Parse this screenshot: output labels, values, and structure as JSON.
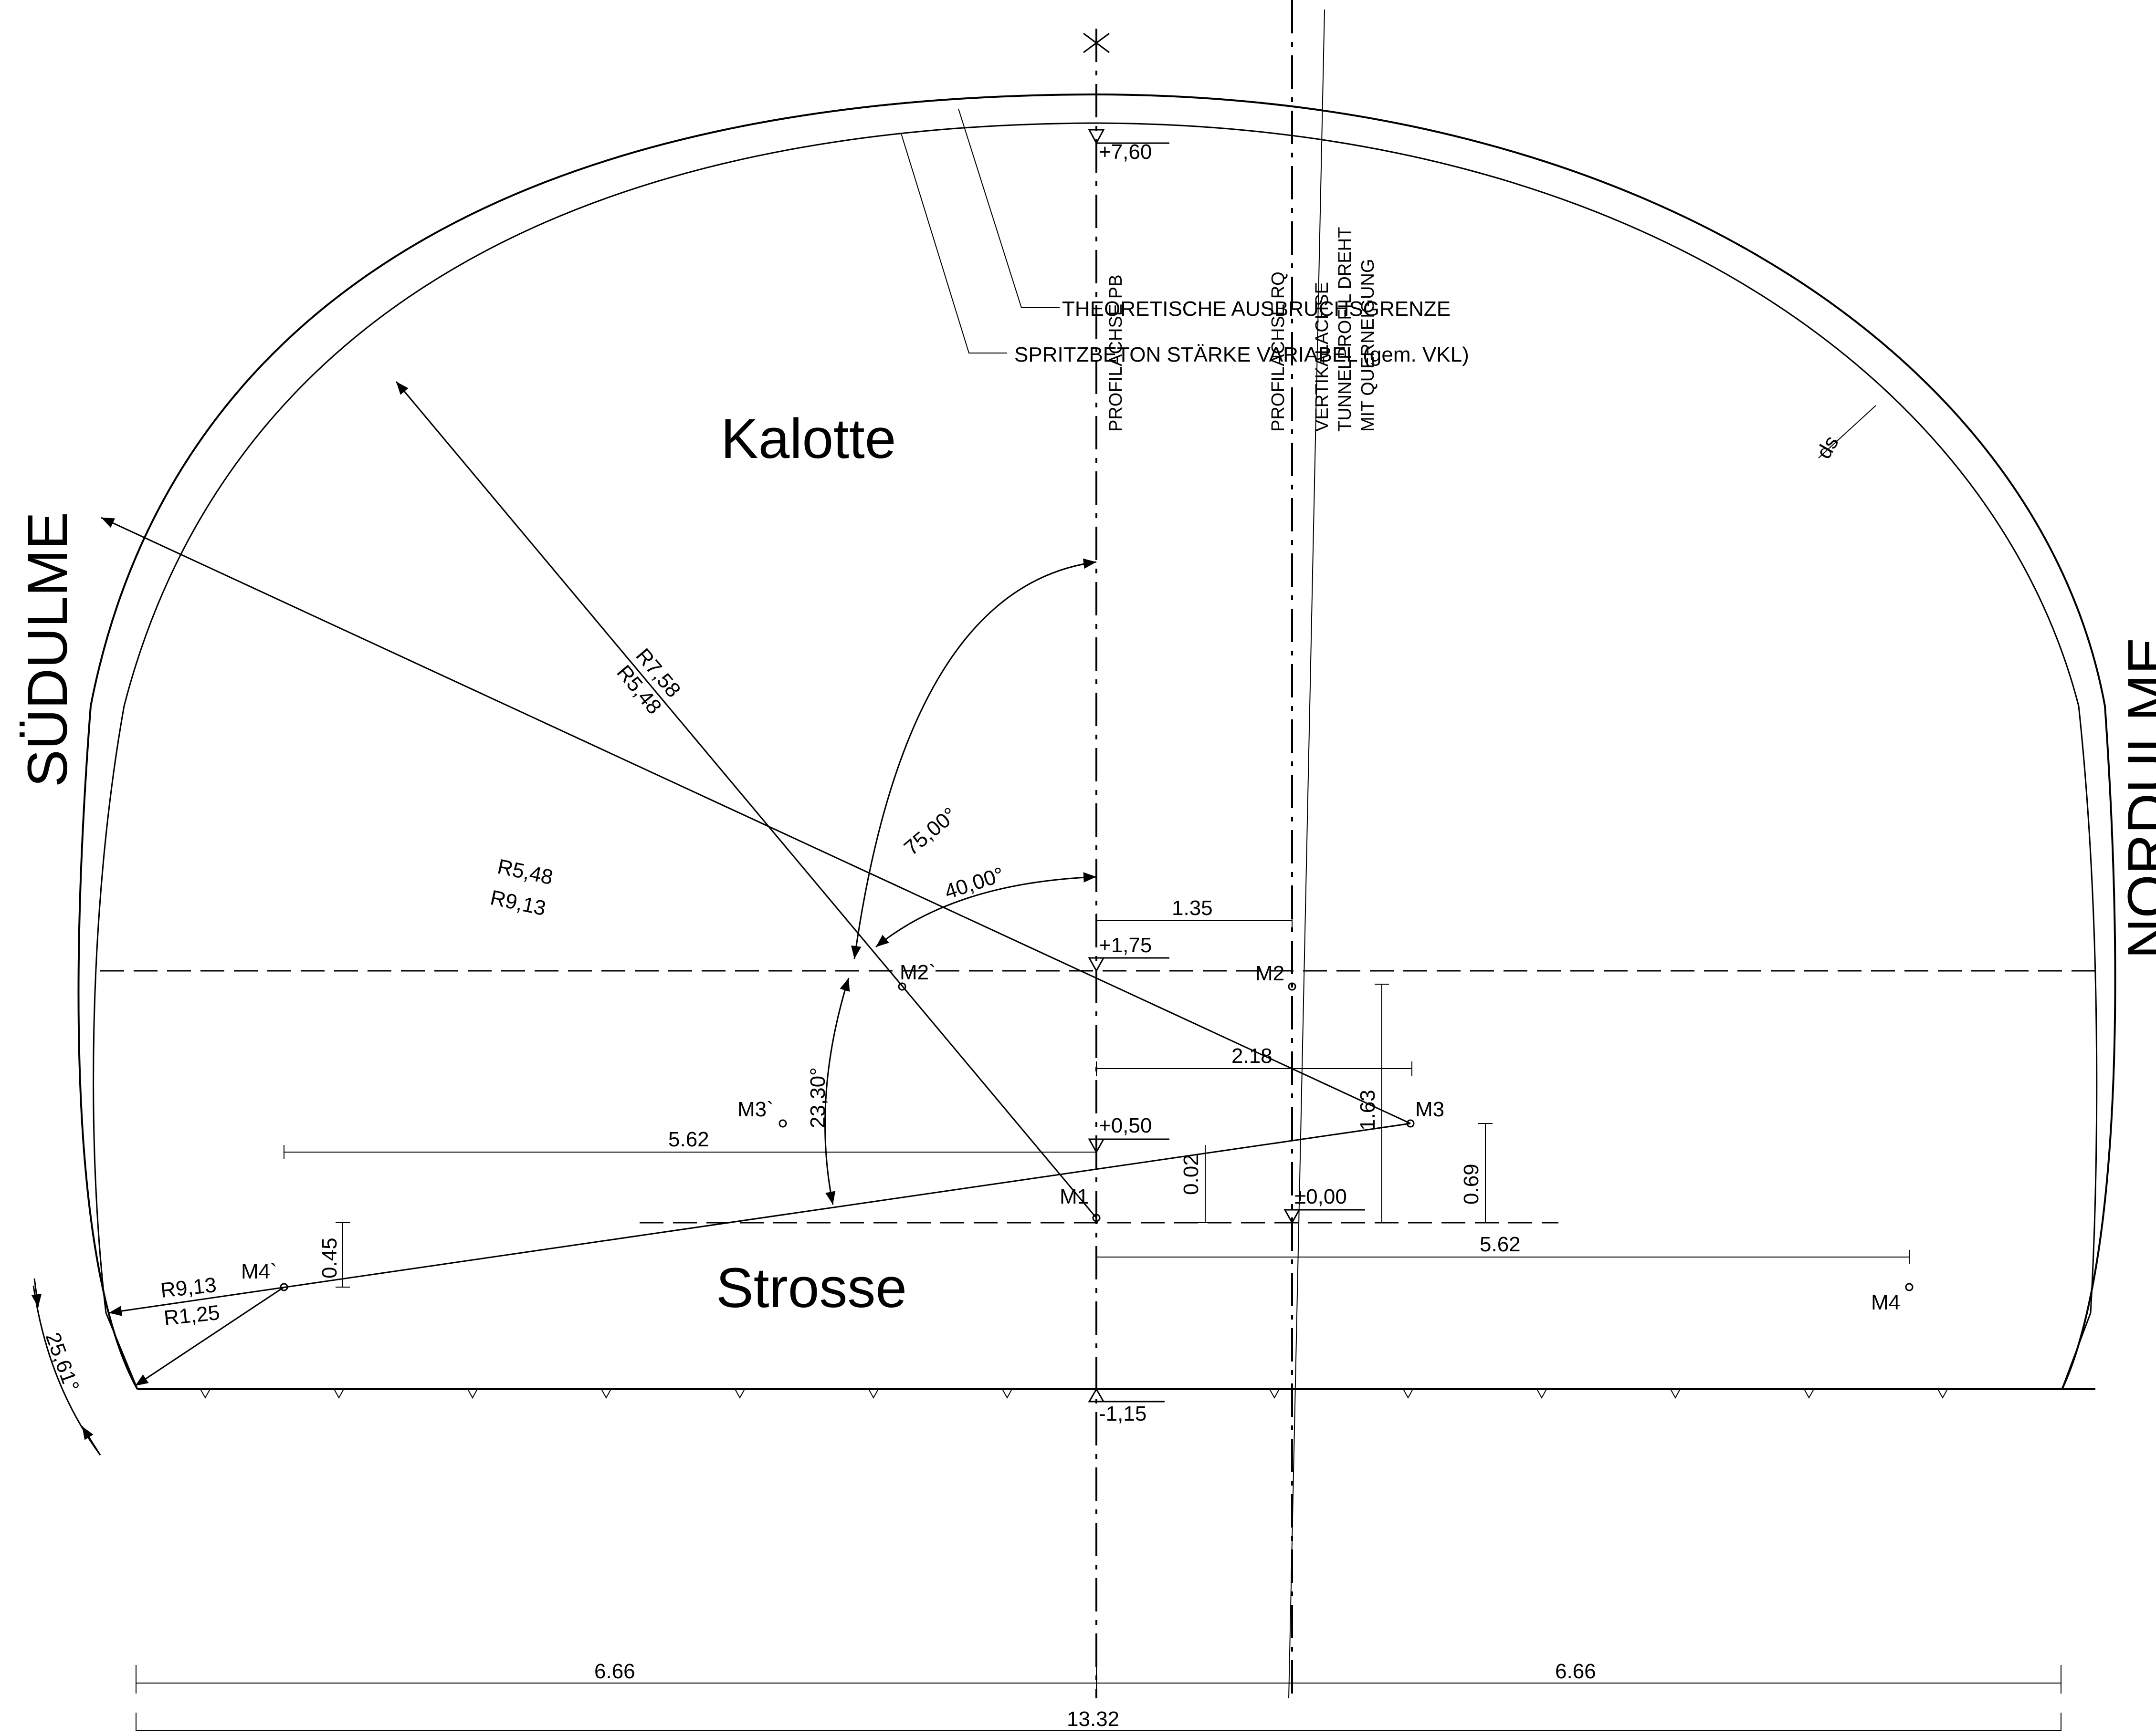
{
  "regions": {
    "kalotte": "Kalotte",
    "strosse": "Strosse",
    "suedulme": "SÜDULME",
    "nordulme": "NORDULME"
  },
  "annotations": {
    "theoretische": "THEORETISCHE AUSBRUCHSGRENZE",
    "spritzbeton": "SPRITZBETON STÄRKE VARIABEL (gem. VKL)",
    "ds": "ds"
  },
  "axes": {
    "pb": "PROFILACHSE PB",
    "rq": "PROFILACHSE RQ",
    "vertikal": "VERTIKALACHSE",
    "tunnelprofil": "TUNNELPROFIL DREHT",
    "querneigung": "MIT QUERNEIGUNG"
  },
  "levels": {
    "top": "+7,60",
    "m2": "+1,75",
    "m3": "+0,50",
    "zero": "±0,00",
    "bottom": "-1,15"
  },
  "points": {
    "m1": "M1",
    "m2": "M2",
    "m2p": "M2`",
    "m3": "M3",
    "m3p": "M3`",
    "m4": "M4",
    "m4p": "M4`"
  },
  "radii": {
    "r758": "R7,58",
    "r548_a": "R5,48",
    "r548_b": "R5,48",
    "r913_a": "R9,13",
    "r913_b": "R9,13",
    "r125": "R1,25"
  },
  "angles": {
    "a75": "75,00°",
    "a40": "40,00°",
    "a2330": "23,30°",
    "a2561": "25,61°"
  },
  "dimensions": {
    "d135": "1.35",
    "d218": "2.18",
    "d562_left": "5.62",
    "d562_right": "5.62",
    "d163": "1.63",
    "d002": "0.02",
    "d069": "0.69",
    "d045": "0.45",
    "d666_left": "6.66",
    "d666_right": "6.66",
    "d1332": "13.32"
  }
}
